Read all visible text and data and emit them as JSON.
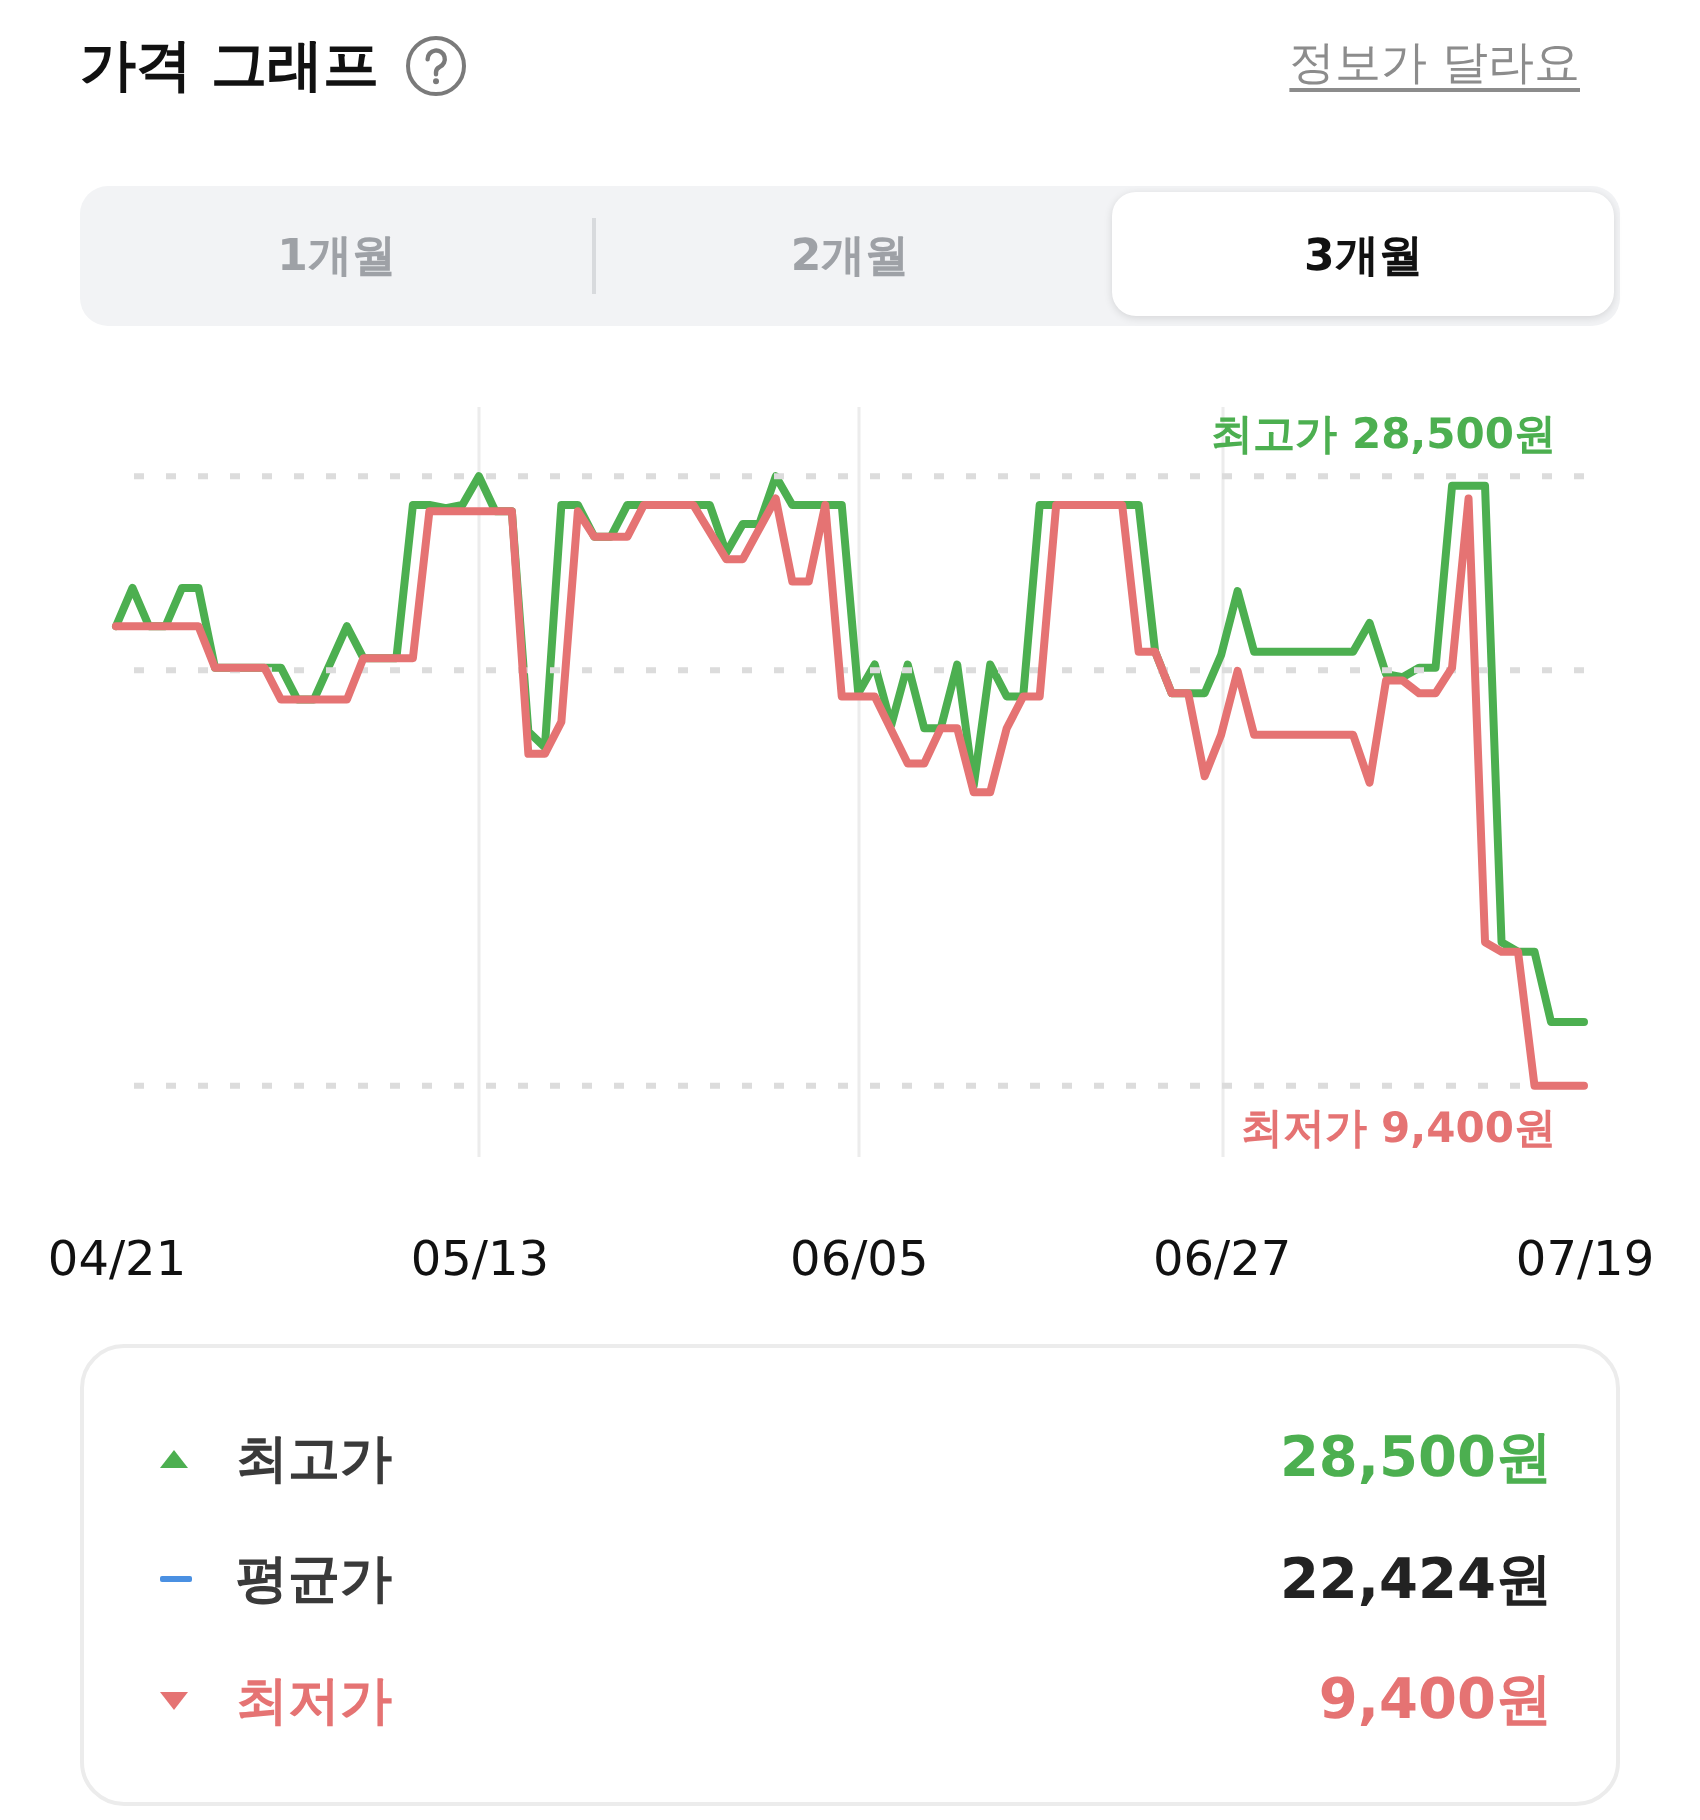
{
  "chart_data": [
    {
      "type": "line",
      "title": "가격 그래프",
      "annotations": [
        "정보가 달라요",
        "1개월",
        "2개월",
        "3개월"
      ],
      "xlim": [
        "--04-21",
        "--07-19"
      ],
      "xticks": [
        {
          "value": "--04-21",
          "label": "04/21"
        },
        {
          "value": "--05-13",
          "label": "05/13"
        },
        {
          "value": "--06-05",
          "label": "06/05"
        },
        {
          "value": "--06-27",
          "label": "06/27"
        },
        {
          "value": "--07-19",
          "label": "07/19"
        }
      ],
      "ylim": [
        7200,
        30700
      ],
      "tick_labels": "x",
      "grid": "x",
      "ref_lines": [
        {
          "axis": "y",
          "value": 28500,
          "label": "최고가 28,500원",
          "color": "#dcdcdc",
          "line_style": "dotted"
        },
        {
          "axis": "y",
          "value": 22424,
          "color": "#dcdcdc",
          "line_style": "dotted"
        },
        {
          "axis": "y",
          "value": 9400,
          "label": "최저가 9,400원",
          "color": "#dcdcdc",
          "line_style": "dotted"
        }
      ],
      "series": [
        {
          "color": "#4caf50",
          "x": [
            "--04-21",
            "--04-22",
            "--04-23",
            "--04-24",
            "--04-25",
            "--04-26",
            "--04-27",
            "--05-01",
            "--05-02",
            "--05-03",
            "--05-05",
            "--05-06",
            "--05-08",
            "--05-09",
            "--05-10",
            "--05-11",
            "--05-12",
            "--05-13",
            "--05-14",
            "--05-15",
            "--05-16",
            "--05-17",
            "--05-18",
            "--05-19",
            "--05-20",
            "--05-21",
            "--05-22",
            "--05-27",
            "--05-28",
            "--05-29",
            "--05-30",
            "--05-31",
            "--06-01",
            "--06-04",
            "--06-05",
            "--06-06",
            "--06-07",
            "--06-08",
            "--06-09",
            "--06-10",
            "--06-11",
            "--06-12",
            "--06-13",
            "--06-14",
            "--06-15",
            "--06-16",
            "--06-22",
            "--06-23",
            "--06-24",
            "--06-26",
            "--06-27",
            "--06-28",
            "--06-29",
            "--07-05",
            "--07-06",
            "--07-07",
            "--07-08",
            "--07-09",
            "--07-10",
            "--07-11",
            "--07-13",
            "--07-14",
            "--07-15",
            "--07-16",
            "--07-17",
            "--07-19"
          ],
          "values": [
            23800,
            25000,
            23800,
            23800,
            25000,
            25000,
            22500,
            22500,
            21500,
            21500,
            23800,
            22800,
            22800,
            27600,
            27600,
            27500,
            27600,
            28500,
            27400,
            27400,
            20500,
            20000,
            27600,
            27600,
            26600,
            26600,
            27600,
            27600,
            26100,
            27000,
            27000,
            28500,
            27600,
            27600,
            21700,
            22600,
            20700,
            22600,
            20600,
            20600,
            22600,
            18800,
            22600,
            21600,
            21600,
            27600,
            27600,
            23000,
            21700,
            21700,
            22900,
            24900,
            23000,
            23000,
            23900,
            22300,
            22200,
            22500,
            22500,
            28200,
            28200,
            13900,
            13600,
            13600,
            11400,
            11400
          ]
        },
        {
          "color": "#e57373",
          "x": [
            "--04-21",
            "--04-26",
            "--04-27",
            "--04-30",
            "--05-01",
            "--05-05",
            "--05-06",
            "--05-09",
            "--05-10",
            "--05-15",
            "--05-16",
            "--05-17",
            "--05-18",
            "--05-19",
            "--05-20",
            "--05-22",
            "--05-23",
            "--05-26",
            "--05-28",
            "--05-29",
            "--05-31",
            "--06-01",
            "--06-02",
            "--06-03",
            "--06-04",
            "--06-06",
            "--06-08",
            "--06-09",
            "--06-10",
            "--06-11",
            "--06-12",
            "--06-13",
            "--06-14",
            "--06-15",
            "--06-16",
            "--06-17",
            "--06-21",
            "--06-22",
            "--06-23",
            "--06-24",
            "--06-25",
            "--06-26",
            "--06-27",
            "--06-28",
            "--06-29",
            "--07-05",
            "--07-06",
            "--07-07",
            "--07-08",
            "--07-09",
            "--07-10",
            "--07-11",
            "--07-12",
            "--07-13",
            "--07-14",
            "--07-15",
            "--07-16",
            "--07-19"
          ],
          "values": [
            23800,
            23800,
            22500,
            22500,
            21500,
            21500,
            22800,
            22800,
            27400,
            27400,
            19800,
            19800,
            20800,
            27400,
            26600,
            26600,
            27600,
            27600,
            25900,
            25900,
            27800,
            25200,
            25200,
            27600,
            21600,
            21600,
            19500,
            19500,
            20600,
            20600,
            18600,
            18600,
            20600,
            21600,
            21600,
            27600,
            27600,
            23000,
            23000,
            21700,
            21700,
            19100,
            20400,
            22400,
            20400,
            20400,
            18900,
            22100,
            22100,
            21700,
            21700,
            22500,
            27800,
            13900,
            13600,
            13600,
            9400,
            9400
          ]
        }
      ]
    },
    {
      "type": "other",
      "categories": [
        "최고가",
        "평균가",
        "최저가"
      ],
      "values": [
        28500,
        22424,
        9400
      ],
      "value_labels": [
        "28,500원",
        "22,424원",
        "9,400원"
      ],
      "colors": [
        "#4caf50",
        "#4a90e2",
        "#e57373"
      ]
    }
  ]
}
